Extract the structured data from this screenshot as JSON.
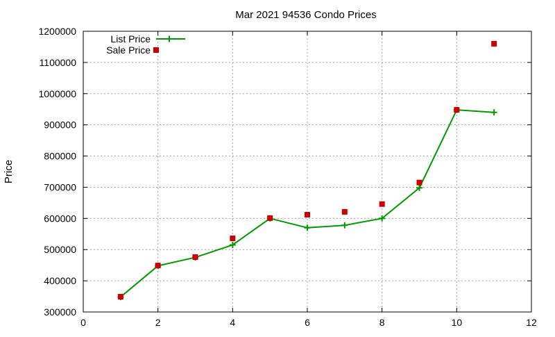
{
  "chart_data": {
    "type": "line",
    "title": "Mar 2021 94536 Condo Prices",
    "xlabel": "",
    "ylabel": "Price",
    "xlim": [
      0,
      12
    ],
    "ylim": [
      300000,
      1200000
    ],
    "x_ticks": [
      0,
      2,
      4,
      6,
      8,
      10,
      12
    ],
    "y_ticks": [
      300000,
      400000,
      500000,
      600000,
      700000,
      800000,
      900000,
      1000000,
      1100000,
      1200000
    ],
    "x_tick_labels": [
      "0",
      "2",
      "4",
      "6",
      "8",
      "10",
      "12"
    ],
    "y_tick_labels": [
      "300000",
      "400000",
      "500000",
      "600000",
      "700000",
      "800000",
      "900000",
      "1000000",
      "1100000",
      "1200000"
    ],
    "grid": true,
    "legend_position": "top-left",
    "series": [
      {
        "name": "List Price",
        "style": "line-plus",
        "color": "#009900",
        "points": [
          {
            "x": 1,
            "y": 348000
          },
          {
            "x": 2,
            "y": 448000
          },
          {
            "x": 3,
            "y": 475000
          },
          {
            "x": 4,
            "y": 515000
          },
          {
            "x": 5,
            "y": 600000
          },
          {
            "x": 6,
            "y": 570000
          },
          {
            "x": 7,
            "y": 578000
          },
          {
            "x": 8,
            "y": 600000
          },
          {
            "x": 9,
            "y": 698000
          },
          {
            "x": 10,
            "y": 948000
          },
          {
            "x": 11,
            "y": 940000
          }
        ]
      },
      {
        "name": "Sale Price",
        "style": "square-markers",
        "color": "#cc0000",
        "points": [
          {
            "x": 1,
            "y": 349000
          },
          {
            "x": 2,
            "y": 449000
          },
          {
            "x": 3,
            "y": 476000
          },
          {
            "x": 4,
            "y": 536000
          },
          {
            "x": 5,
            "y": 601000
          },
          {
            "x": 6,
            "y": 612000
          },
          {
            "x": 7,
            "y": 621000
          },
          {
            "x": 8,
            "y": 646000
          },
          {
            "x": 9,
            "y": 715000
          },
          {
            "x": 10,
            "y": 948000
          },
          {
            "x": 11,
            "y": 1160000
          }
        ]
      }
    ]
  }
}
